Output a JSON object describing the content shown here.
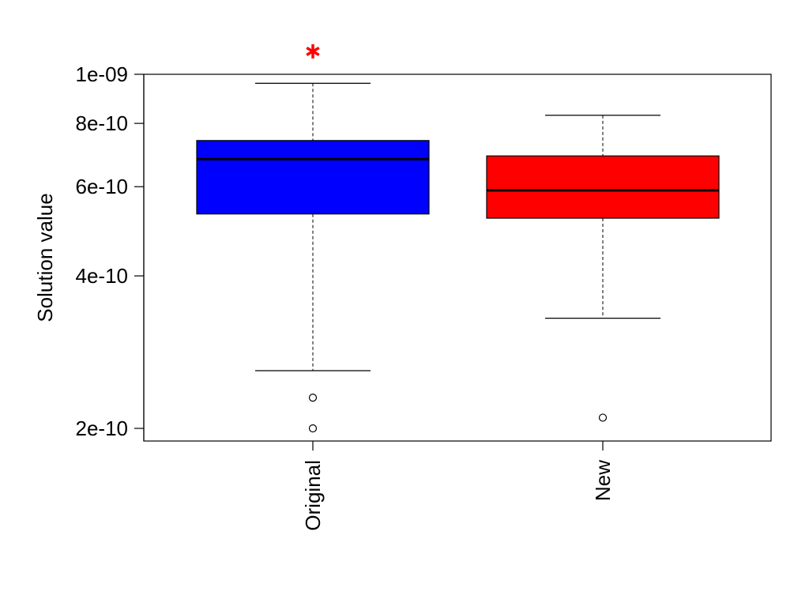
{
  "chart_data": {
    "type": "box",
    "title": "",
    "xlabel": "",
    "ylabel": "Solution value",
    "y_scale": "log",
    "ylim": [
      1.9e-10,
      1e-09
    ],
    "y_ticks": [
      {
        "value": 2e-10,
        "label": "2e-10"
      },
      {
        "value": 4e-10,
        "label": "4e-10"
      },
      {
        "value": 6e-10,
        "label": "6e-10"
      },
      {
        "value": 8e-10,
        "label": "8e-10"
      },
      {
        "value": 1e-09,
        "label": "1e-09"
      }
    ],
    "grid": false,
    "legend": "none",
    "categories": [
      "Original",
      "New"
    ],
    "boxes": [
      {
        "category": "Original",
        "color": "#0000ff",
        "whisker_low": 2.6e-10,
        "q1": 5.3e-10,
        "median": 6.8e-10,
        "q3": 7.4e-10,
        "whisker_high": 9.6e-10,
        "outliers": [
          2.3e-10,
          2e-10
        ]
      },
      {
        "category": "New",
        "color": "#ff0000",
        "whisker_low": 3.3e-10,
        "q1": 5.2e-10,
        "median": 5.9e-10,
        "q3": 6.9e-10,
        "whisker_high": 8.3e-10,
        "outliers": [
          2.1e-10
        ]
      }
    ],
    "markers": [
      {
        "category": "Original",
        "symbol": "asterisk",
        "color": "#ff0000",
        "above_plot": true
      }
    ]
  }
}
